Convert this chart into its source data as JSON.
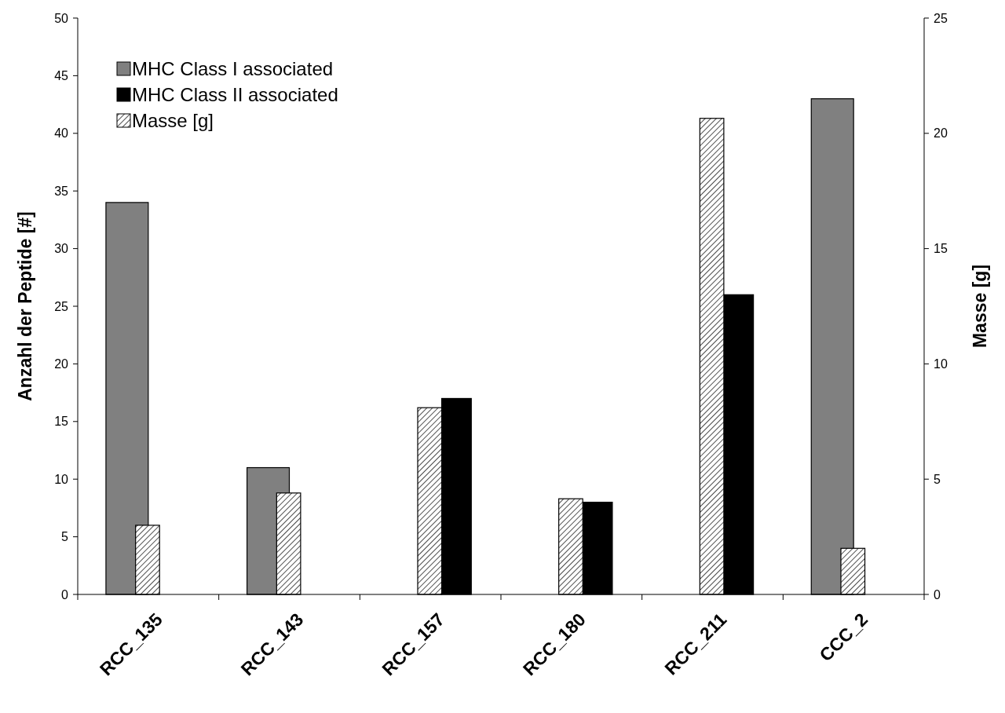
{
  "chart_data": {
    "type": "bar",
    "categories": [
      "RCC_135",
      "RCC_143",
      "RCC_157",
      "RCC_180",
      "RCC_211",
      "CCC_2"
    ],
    "ylabel": "Anzahl der Peptide [#]",
    "y2label": "Masse [g]",
    "ylim": [
      0,
      50
    ],
    "yticks": [
      0,
      5,
      10,
      15,
      20,
      25,
      30,
      35,
      40,
      45,
      50
    ],
    "y2lim": [
      0,
      25
    ],
    "y2ticks": [
      0,
      5,
      10,
      15,
      20,
      25
    ],
    "series": [
      {
        "name": "MHC Class I associated",
        "color": "#808080",
        "values": [
          34,
          11,
          null,
          null,
          null,
          43
        ]
      },
      {
        "name": "MHC Class II associated",
        "color": "#000000",
        "values": [
          null,
          null,
          17,
          8,
          26,
          null
        ]
      },
      {
        "name": "Masse [g]",
        "color": "#000000",
        "axis": "y2",
        "values": [
          3,
          4.4,
          8.1,
          4.15,
          20.65,
          2
        ]
      }
    ],
    "legend": "top left",
    "grid": false
  }
}
